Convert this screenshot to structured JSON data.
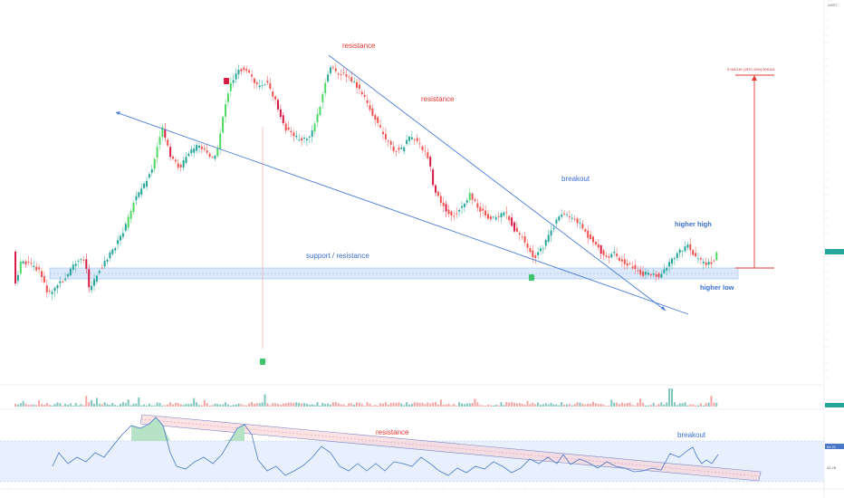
{
  "chart_data": {
    "type": "candlestick",
    "price_axis": {
      "currency": "USDT"
    },
    "annotations": {
      "resistance_1": "resistance",
      "resistance_2": "resistance",
      "breakout": "breakout",
      "support_resistance": "support / resistance",
      "higher_high": "higher high",
      "higher_low": "higher low",
      "target_measure": "0.000119 (1970.10%) 000119",
      "rsi_resistance": "resistance",
      "rsi_breakout": "breakout"
    },
    "rsi_values": {
      "upper": "64.21",
      "lower": "44.28"
    },
    "colors": {
      "up": "#26a69a",
      "up_bright": "#4cd964",
      "down": "#ef5350",
      "down_dark": "#d81b45",
      "trendline": "#4a7bd8",
      "annotation_red": "#e53935",
      "annotation_blue": "#3a6fd0",
      "zone_fill": "#dbe9fb",
      "rsi_line": "#4a78c8"
    }
  }
}
